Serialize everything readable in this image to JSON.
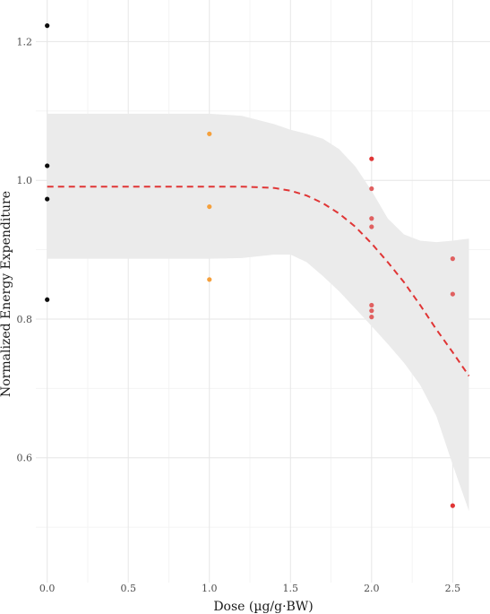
{
  "chart_data": {
    "type": "scatter",
    "xlabel": "Dose (µg/g·BW)",
    "ylabel": "Normalized Energy Expenditure",
    "xlim": [
      -0.07,
      2.73
    ],
    "ylim": [
      0.42,
      1.26
    ],
    "x_ticks": [
      {
        "value": 0.0,
        "label": "0.0"
      },
      {
        "value": 0.5,
        "label": "0.5"
      },
      {
        "value": 1.0,
        "label": "1.0"
      },
      {
        "value": 1.5,
        "label": "1.5"
      },
      {
        "value": 2.0,
        "label": "2.0"
      },
      {
        "value": 2.5,
        "label": "2.5"
      }
    ],
    "y_ticks": [
      {
        "value": 0.6,
        "label": "0.6"
      },
      {
        "value": 0.8,
        "label": "0.8"
      },
      {
        "value": 1.0,
        "label": "1.0"
      },
      {
        "value": 1.2,
        "label": "1.2"
      }
    ],
    "grid": true,
    "legend": "none",
    "points": [
      {
        "x": 0.0,
        "y": 1.223,
        "color": "#0d0d0d"
      },
      {
        "x": 0.0,
        "y": 1.021,
        "color": "#0d0d0d"
      },
      {
        "x": 0.0,
        "y": 0.973,
        "color": "#0d0d0d"
      },
      {
        "x": 0.0,
        "y": 0.828,
        "color": "#0d0d0d"
      },
      {
        "x": 1.0,
        "y": 1.067,
        "color": "#f5a03c"
      },
      {
        "x": 1.0,
        "y": 0.962,
        "color": "#f5a03c"
      },
      {
        "x": 1.0,
        "y": 0.857,
        "color": "#f5a03c"
      },
      {
        "x": 2.0,
        "y": 1.031,
        "color": "#e03535"
      },
      {
        "x": 2.0,
        "y": 0.988,
        "color": "#e06060"
      },
      {
        "x": 2.0,
        "y": 0.945,
        "color": "#e06060"
      },
      {
        "x": 2.0,
        "y": 0.933,
        "color": "#e06060"
      },
      {
        "x": 2.0,
        "y": 0.82,
        "color": "#e06060"
      },
      {
        "x": 2.0,
        "y": 0.812,
        "color": "#e06060"
      },
      {
        "x": 2.0,
        "y": 0.803,
        "color": "#e06060"
      },
      {
        "x": 2.5,
        "y": 0.887,
        "color": "#e06060"
      },
      {
        "x": 2.5,
        "y": 0.836,
        "color": "#e06060"
      },
      {
        "x": 2.5,
        "y": 0.531,
        "color": "#e03535"
      }
    ],
    "fit_line": {
      "style": "dashed",
      "color": "#e03535",
      "x": [
        0.0,
        0.5,
        1.0,
        1.2,
        1.4,
        1.5,
        1.6,
        1.7,
        1.8,
        1.9,
        2.0,
        2.1,
        2.2,
        2.3,
        2.4,
        2.5,
        2.6
      ],
      "y": [
        0.991,
        0.991,
        0.991,
        0.991,
        0.989,
        0.985,
        0.978,
        0.967,
        0.952,
        0.933,
        0.909,
        0.882,
        0.853,
        0.82,
        0.785,
        0.752,
        0.718
      ]
    },
    "confidence_band": {
      "color": "#ebebeb",
      "x": [
        0.0,
        0.5,
        1.0,
        1.2,
        1.4,
        1.5,
        1.6,
        1.7,
        1.8,
        1.9,
        2.0,
        2.1,
        2.2,
        2.3,
        2.4,
        2.5,
        2.6
      ],
      "upper": [
        1.096,
        1.096,
        1.096,
        1.093,
        1.081,
        1.073,
        1.067,
        1.06,
        1.045,
        1.02,
        0.985,
        0.945,
        0.922,
        0.913,
        0.911,
        0.913,
        0.916
      ],
      "lower": [
        0.887,
        0.887,
        0.887,
        0.888,
        0.893,
        0.893,
        0.882,
        0.862,
        0.84,
        0.815,
        0.79,
        0.764,
        0.737,
        0.705,
        0.66,
        0.59,
        0.523
      ]
    }
  }
}
